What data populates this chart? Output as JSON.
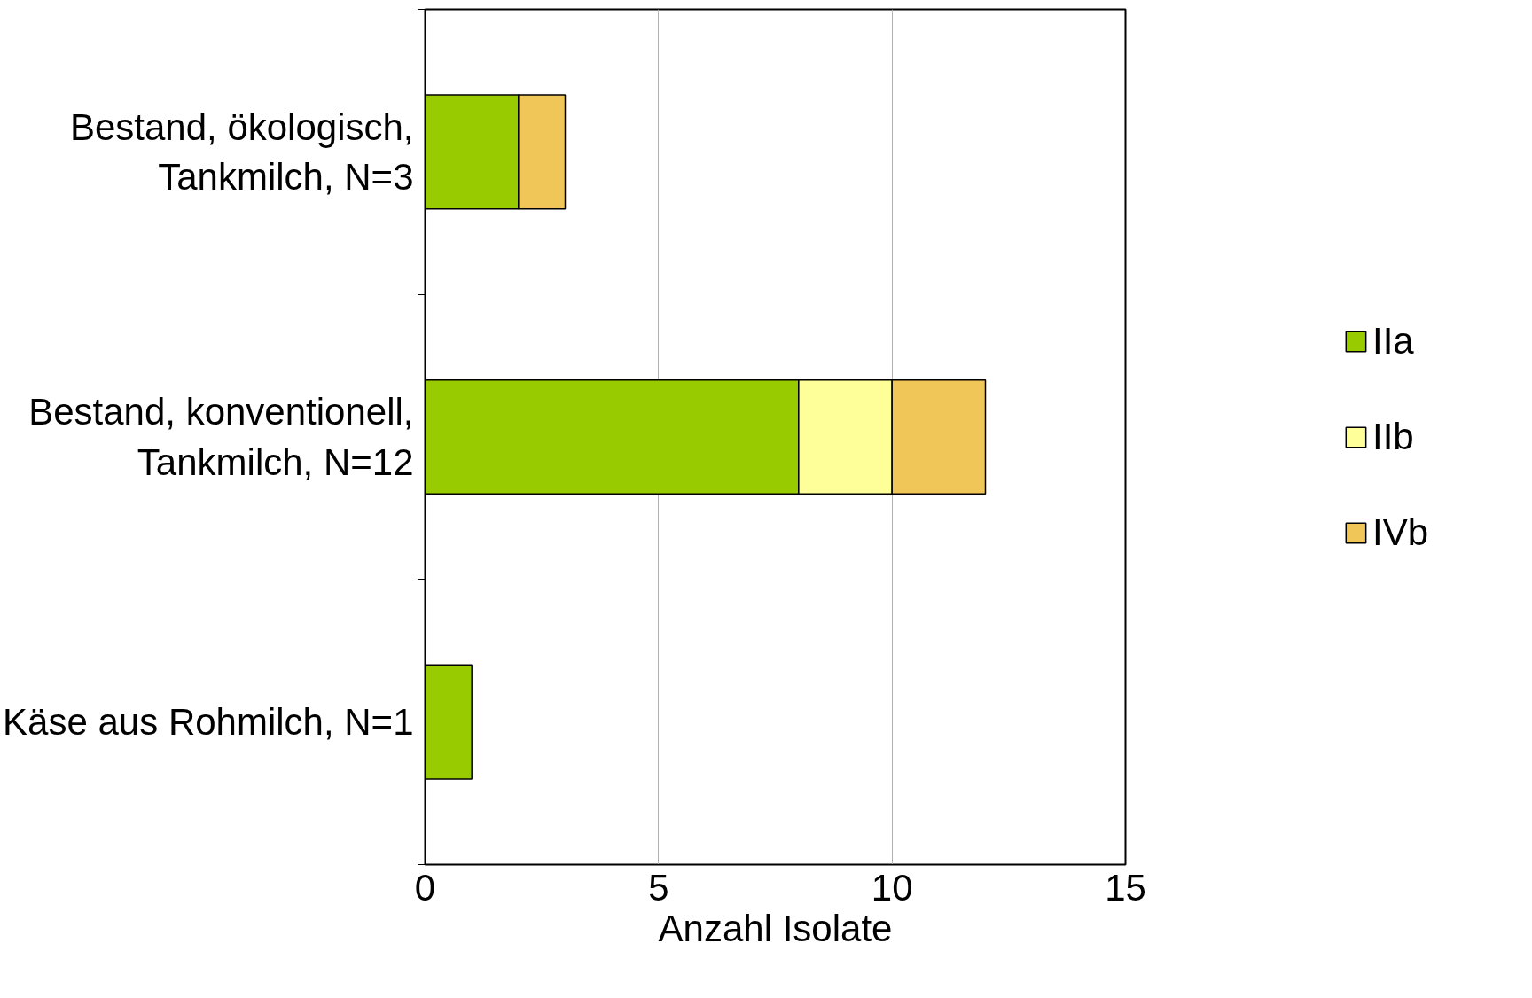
{
  "chart_data": {
    "type": "bar",
    "orientation": "horizontal",
    "stacked": true,
    "xlabel": "Anzahl Isolate",
    "categories": [
      "Bestand, ökologisch,\nTankmilch, N=3",
      "Bestand, konventionell,\nTankmilch, N=12",
      "Käse aus Rohmilch, N=1"
    ],
    "series": [
      {
        "name": "IIa",
        "color": "#99cc00",
        "values": [
          2,
          8,
          1
        ]
      },
      {
        "name": "IIb",
        "color": "#ffff99",
        "values": [
          0,
          2,
          0
        ]
      },
      {
        "name": "IVb",
        "color": "#f0c658",
        "values": [
          1,
          2,
          0
        ]
      }
    ],
    "xlim": [
      0,
      15
    ],
    "xticks": [
      0,
      5,
      10,
      15
    ],
    "grid": "x",
    "legend": "right"
  }
}
